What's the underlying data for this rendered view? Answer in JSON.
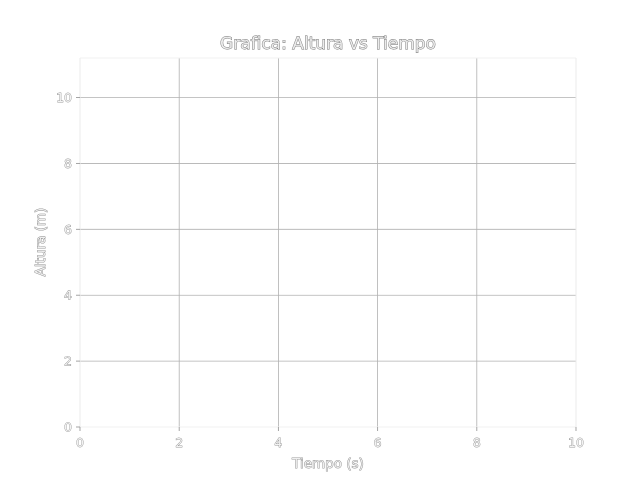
{
  "chart_data": {
    "type": "line",
    "title": "Grafica: Altura vs Tiempo",
    "xlabel": "Tiempo (s)",
    "ylabel": "Altura (m)",
    "xlim": [
      0,
      10
    ],
    "ylim": [
      0,
      11.2
    ],
    "x_ticks": [
      0,
      2,
      4,
      6,
      8,
      10
    ],
    "y_ticks": [
      0,
      2,
      4,
      6,
      8,
      10
    ],
    "x_tick_labels": [
      "0",
      "2",
      "4",
      "6",
      "8",
      "10"
    ],
    "y_tick_labels": [
      "0",
      "2",
      "4",
      "6",
      "8",
      "10"
    ],
    "grid": true,
    "series": []
  }
}
